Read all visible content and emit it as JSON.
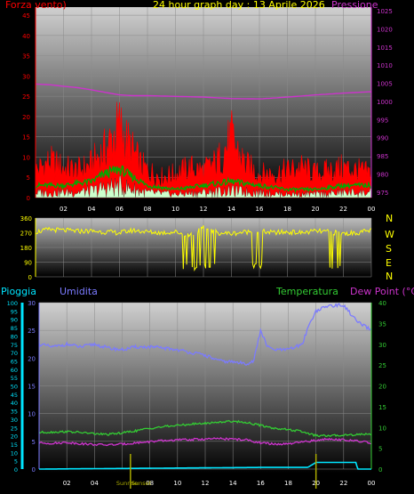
{
  "header": {
    "wind_label": "Forza vento)",
    "title": "24 hour graph day : 13 Aprile 2026",
    "pressure_label": "Pressione"
  },
  "direction_labels": [
    "N",
    "W",
    "S",
    "E",
    "N"
  ],
  "lower_header": {
    "rain_label": "Pioggia",
    "humidity_label": "Umidita",
    "temperature_label": "Temperatura",
    "dewpoint_label": "Dew Point (°C)"
  },
  "sun_labels": {
    "sunrise": "Sunrise",
    "sunset": "Sunset"
  },
  "colors": {
    "wind_axis": "#ff0000",
    "pressure": "#cc33cc",
    "direction": "#ffff00",
    "rain": "#00e5ff",
    "humidity": "#7b7bff",
    "temperature": "#33cc33",
    "dewpoint": "#cc33cc",
    "gust": "#ff0000",
    "wind_avg": "#00aa00",
    "wind_min": "#ccffcc",
    "sun": "#aaaa00"
  },
  "chart_data": [
    {
      "type": "line",
      "name": "wind-pressure",
      "x_ticks": [
        "02",
        "04",
        "06",
        "08",
        "10",
        "12",
        "14",
        "16",
        "18",
        "20",
        "22",
        "00"
      ],
      "xlim": [
        0,
        24
      ],
      "y_left": {
        "ticks": [
          0,
          5,
          10,
          15,
          20,
          25,
          30,
          35,
          40,
          45
        ],
        "ylim": [
          0,
          47
        ]
      },
      "y_right": {
        "ticks": [
          975,
          980,
          985,
          990,
          995,
          1000,
          1005,
          1010,
          1015,
          1020,
          1025
        ],
        "ylim": [
          973.5,
          1026.0
        ]
      },
      "series": [
        {
          "key": "gust",
          "hours": [
            0,
            1,
            2,
            3,
            4,
            4.5,
            5,
            5.5,
            6,
            6.5,
            7,
            7.5,
            8,
            9,
            10,
            11,
            12,
            13,
            13.5,
            14,
            14.5,
            15,
            16,
            17,
            18,
            19,
            20,
            21,
            22,
            23,
            24
          ],
          "values": [
            9,
            12,
            10,
            9,
            11,
            14,
            16,
            20,
            24,
            19,
            15,
            11,
            9,
            7,
            8,
            10,
            9,
            12,
            16,
            20,
            15,
            11,
            8,
            8,
            9,
            10,
            8,
            9,
            10,
            9,
            8
          ]
        },
        {
          "key": "wind_avg",
          "hours": [
            0,
            2,
            4,
            5,
            6,
            7,
            8,
            10,
            12,
            14,
            16,
            18,
            20,
            22,
            24
          ],
          "values": [
            3,
            3,
            4,
            6,
            7,
            5,
            3,
            2,
            3,
            4,
            3,
            2,
            2,
            3,
            3
          ]
        },
        {
          "key": "pressure",
          "hours": [
            0,
            1,
            2,
            3,
            4,
            5,
            6,
            7,
            8,
            10,
            12,
            14,
            16,
            18,
            20,
            22,
            24
          ],
          "values": [
            1004.8,
            1004.6,
            1004.2,
            1003.8,
            1003.2,
            1002.5,
            1001.8,
            1001.6,
            1001.6,
            1001.4,
            1001.2,
            1000.8,
            1000.7,
            1001.2,
            1001.8,
            1002.3,
            1002.7
          ]
        }
      ]
    },
    {
      "type": "line",
      "name": "wind-direction",
      "x_ticks": [],
      "xlim": [
        0,
        24
      ],
      "y_ticks": [
        0,
        90,
        180,
        270,
        360
      ],
      "ylim": [
        0,
        360
      ],
      "series": [
        {
          "key": "direction",
          "hours": [
            0,
            1,
            2,
            3,
            4,
            5,
            6,
            7,
            8,
            9,
            10,
            11,
            12,
            13,
            14,
            15,
            16,
            17,
            18,
            19,
            20,
            21,
            22,
            23,
            24
          ],
          "values": [
            275,
            290,
            285,
            280,
            280,
            275,
            270,
            285,
            275,
            270,
            275,
            255,
            300,
            270,
            265,
            275,
            280,
            270,
            275,
            270,
            280,
            275,
            265,
            270,
            285
          ]
        }
      ]
    },
    {
      "type": "line",
      "name": "rain-humidity-temperature",
      "x_ticks": [
        "02",
        "04",
        "06",
        "08",
        "10",
        "12",
        "14",
        "16",
        "18",
        "20",
        "22",
        "00"
      ],
      "xlim": [
        0,
        24
      ],
      "y_rain": {
        "ticks": [
          0,
          5,
          10,
          15,
          20,
          25,
          30,
          35,
          40,
          45,
          50,
          55,
          60,
          65,
          70,
          75,
          80,
          85,
          90,
          95,
          100
        ],
        "ylim": [
          0,
          100
        ]
      },
      "y_left": {
        "ticks": [
          0,
          5,
          10,
          15,
          20,
          25,
          30
        ],
        "ylim": [
          0,
          30
        ]
      },
      "y_right": {
        "ticks": [
          0,
          5,
          10,
          15,
          20,
          25,
          30,
          35,
          40
        ],
        "ylim": [
          0,
          40
        ]
      },
      "series": [
        {
          "key": "rain",
          "hours": [
            0,
            16,
            19.4,
            20,
            22,
            22.9,
            23,
            24
          ],
          "values": [
            0,
            0.3,
            0.3,
            1.2,
            1.2,
            1.2,
            0,
            0
          ]
        },
        {
          "key": "humidity",
          "hours": [
            0,
            1,
            2,
            3,
            4,
            5,
            6,
            7,
            8,
            9,
            10,
            11,
            12,
            13,
            14,
            15,
            15.5,
            16,
            16.5,
            17,
            18,
            19,
            19.5,
            20,
            21,
            22,
            23,
            24
          ],
          "values": [
            22.5,
            22,
            22.5,
            22,
            22.5,
            21.8,
            21.5,
            22,
            22,
            21.8,
            21.5,
            21,
            20.5,
            19.5,
            19.3,
            19,
            19.5,
            25,
            22,
            21.5,
            21.5,
            22.5,
            26,
            28.5,
            29.5,
            29.5,
            26.5,
            25
          ]
        },
        {
          "key": "temperature",
          "hours": [
            0,
            1,
            2,
            3,
            4,
            5,
            6,
            7,
            8,
            9,
            10,
            11,
            12,
            13,
            14,
            15,
            16,
            17,
            18,
            19,
            20,
            21,
            22,
            23,
            24
          ],
          "values": [
            8.8,
            8.9,
            9,
            8.8,
            8.5,
            8.3,
            8.7,
            9.2,
            9.8,
            10.2,
            10.5,
            10.8,
            11,
            11.3,
            11.5,
            11.2,
            10.5,
            9.8,
            9.5,
            9,
            8,
            8,
            8.2,
            8.3,
            8.5
          ]
        },
        {
          "key": "dewpoint",
          "hours": [
            0,
            1,
            2,
            3,
            4,
            5,
            6,
            7,
            8,
            9,
            10,
            11,
            12,
            13,
            14,
            15,
            16,
            17,
            18,
            19,
            20,
            21,
            22,
            23,
            24
          ],
          "values": [
            6.3,
            6.2,
            6.4,
            6.1,
            5.9,
            5.8,
            6,
            6.3,
            6.6,
            6.8,
            7,
            7.1,
            7.2,
            7.3,
            7.2,
            7,
            6.3,
            6,
            6,
            6.5,
            6.9,
            7.3,
            7,
            6.7,
            6.3
          ]
        }
      ]
    }
  ]
}
